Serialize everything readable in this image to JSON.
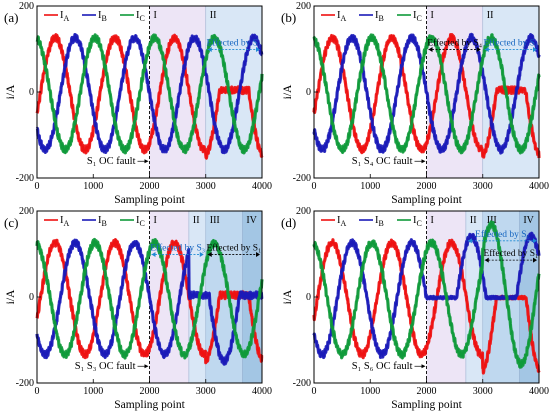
{
  "colors": {
    "IA": "#ee1111",
    "IB": "#1a1ab8",
    "IC": "#0f9a3a",
    "region_I": "#ece4f6",
    "region_II": "#d7e6f5",
    "region_III": "#bcd6ee",
    "region_IV": "#9ec3e3",
    "annotation_blue": "#1f8ad4"
  },
  "chart_data": [
    {
      "type": "line",
      "panel_label": "(a)",
      "xlabel": "Sampling point",
      "ylabel": "i/A",
      "xlim": [
        0,
        4000
      ],
      "ylim": [
        -200,
        200
      ],
      "xticks": [
        0,
        1000,
        2000,
        3000,
        4000
      ],
      "yticks": [
        -200,
        0,
        200
      ],
      "legend": [
        "I_A",
        "I_B",
        "I_C"
      ],
      "legend_position": "top-left",
      "series": [
        {
          "name": "I_A",
          "amplitude": 130,
          "phase_deg": 0,
          "faulted_from": 3000,
          "fault": "positive_half_lost"
        },
        {
          "name": "I_B",
          "amplitude": 130,
          "phase_deg": -120
        },
        {
          "name": "I_C",
          "amplitude": 130,
          "phase_deg": 120
        }
      ],
      "regions": [
        {
          "label": "I",
          "start": 2000,
          "end": 3000,
          "fill": "region_I"
        },
        {
          "label": "II",
          "start": 3000,
          "end": 4000,
          "fill": "region_II"
        }
      ],
      "fault_line": 2000,
      "fault_text": "S₁ OC fault",
      "annotations": [
        {
          "text": "Effected by S₁",
          "start": 3000,
          "end": 4000,
          "y": 108,
          "color": "blue"
        }
      ]
    },
    {
      "type": "line",
      "panel_label": "(b)",
      "xlabel": "Sampling point",
      "ylabel": "i/A",
      "xlim": [
        0,
        4000
      ],
      "ylim": [
        -200,
        200
      ],
      "xticks": [
        0,
        1000,
        2000,
        3000,
        4000
      ],
      "yticks": [
        -200,
        0,
        200
      ],
      "legend": [
        "I_A",
        "I_B",
        "I_C"
      ],
      "legend_position": "top-left",
      "series": [
        {
          "name": "I_A",
          "amplitude": 130,
          "phase_deg": 0,
          "faulted_from": 2000,
          "fault": "positive_half_lost_from_II"
        },
        {
          "name": "I_B",
          "amplitude": 130,
          "phase_deg": -120
        },
        {
          "name": "I_C",
          "amplitude": 130,
          "phase_deg": 120
        }
      ],
      "regions": [
        {
          "label": "I",
          "start": 2000,
          "end": 3000,
          "fill": "region_I"
        },
        {
          "label": "II",
          "start": 3000,
          "end": 4000,
          "fill": "region_II"
        }
      ],
      "fault_line": 2000,
      "fault_text": "S₁ S₄ OC fault",
      "annotations": [
        {
          "text": "Effected by S₄",
          "start": 2000,
          "end": 3000,
          "y": 108,
          "color": "black"
        },
        {
          "text": "Effected by S₁",
          "start": 3000,
          "end": 4000,
          "y": 108,
          "color": "blue"
        }
      ]
    },
    {
      "type": "line",
      "panel_label": "(c)",
      "xlabel": "Sampling point",
      "ylabel": "i/A",
      "xlim": [
        0,
        4000
      ],
      "ylim": [
        -200,
        200
      ],
      "xticks": [
        0,
        1000,
        2000,
        3000,
        4000
      ],
      "yticks": [
        -200,
        0,
        200
      ],
      "legend": [
        "I_A",
        "I_B",
        "I_C"
      ],
      "legend_position": "top-left",
      "series": [
        {
          "name": "I_A",
          "amplitude": 130,
          "phase_deg": 0,
          "faulted_from": 3000,
          "fault": "positive_half_lost"
        },
        {
          "name": "I_B",
          "amplitude": 130,
          "phase_deg": -120,
          "faulted_from": 2700,
          "fault": "positive_half_lost"
        },
        {
          "name": "I_C",
          "amplitude": 130,
          "phase_deg": 120
        }
      ],
      "regions": [
        {
          "label": "I",
          "start": 2000,
          "end": 2700,
          "fill": "region_I"
        },
        {
          "label": "II",
          "start": 2700,
          "end": 3000,
          "fill": "region_II"
        },
        {
          "label": "III",
          "start": 3000,
          "end": 3650,
          "fill": "region_III"
        },
        {
          "label": "IV",
          "start": 3650,
          "end": 4000,
          "fill": "region_IV"
        }
      ],
      "fault_line": 2000,
      "fault_text": "S₁ S₃ OC fault",
      "annotations": [
        {
          "text": "Effected by S₃",
          "start": 2000,
          "end": 3000,
          "y": 108,
          "color": "blue"
        },
        {
          "text": "Effected by S₁",
          "start": 3000,
          "end": 4000,
          "y": 108,
          "color": "black"
        }
      ]
    },
    {
      "type": "line",
      "panel_label": "(d)",
      "xlabel": "Sampling point",
      "ylabel": "i/A",
      "xlim": [
        0,
        4000
      ],
      "ylim": [
        -200,
        200
      ],
      "xticks": [
        0,
        1000,
        2000,
        3000,
        4000
      ],
      "yticks": [
        -200,
        0,
        200
      ],
      "legend": [
        "I_A",
        "I_B",
        "I_C"
      ],
      "legend_position": "top-left",
      "series": [
        {
          "name": "I_A",
          "amplitude": 130,
          "phase_deg": 0,
          "faulted_from": 2000,
          "fault": "positive_half_lost_from_II_then_rebalanced"
        },
        {
          "name": "I_B",
          "amplitude": 130,
          "phase_deg": -120,
          "faulted_from": 2000,
          "fault": "negative_half_lost"
        },
        {
          "name": "I_C",
          "amplitude": 130,
          "phase_deg": 120,
          "faulted_from": 2700,
          "fault": "rebalanced"
        }
      ],
      "regions": [
        {
          "label": "I",
          "start": 2000,
          "end": 2700,
          "fill": "region_I"
        },
        {
          "label": "II",
          "start": 2700,
          "end": 3000,
          "fill": "region_II"
        },
        {
          "label": "III",
          "start": 3000,
          "end": 3650,
          "fill": "region_III"
        },
        {
          "label": "IV",
          "start": 3650,
          "end": 4000,
          "fill": "region_IV"
        }
      ],
      "fault_line": 2000,
      "fault_text": "S₁ S₆ OC fault",
      "annotations": [
        {
          "text": "Effected by S₆",
          "start": 2700,
          "end": 4000,
          "y": 140,
          "color": "blue"
        },
        {
          "text": "Effected by S₁",
          "start": 3000,
          "end": 4000,
          "y": 95,
          "color": "black"
        }
      ]
    }
  ]
}
